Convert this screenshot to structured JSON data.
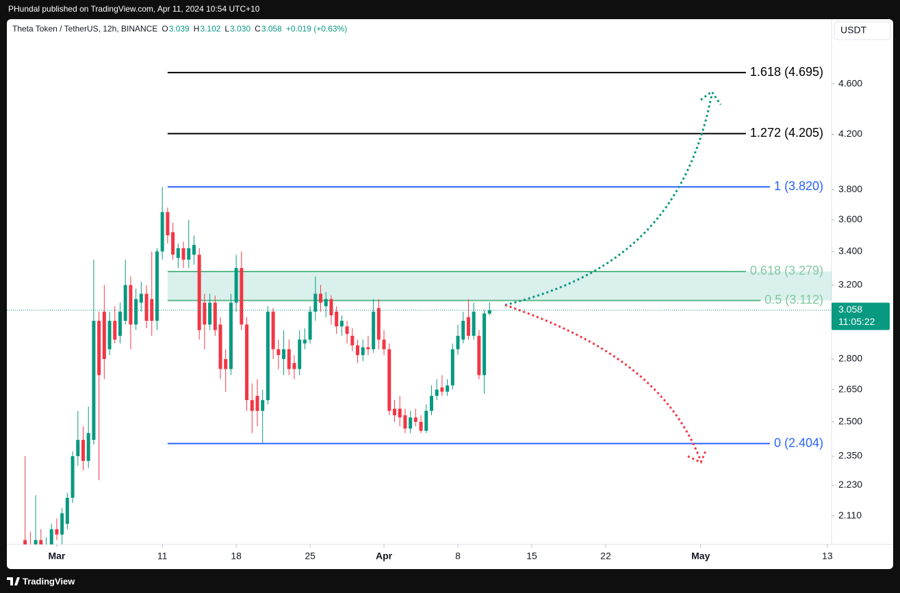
{
  "header": {
    "publisher": "PHundal published on TradingView.com, Apr 11, 2024 10:54 UTC+10"
  },
  "chart_data": {
    "type": "candlestick",
    "title": "Theta Token / TetherUS, 12h, BINANCE",
    "ohlc_legend": {
      "o_label": "O",
      "o": "3.039",
      "h_label": "H",
      "h": "3.102",
      "l_label": "L",
      "l": "3.030",
      "c_label": "C",
      "c": "3.058",
      "change": "+0.019 (+0.63%)"
    },
    "currency": "USDT",
    "x": [
      -3,
      -2.5,
      -2,
      -1.5,
      -1,
      -0.5,
      0,
      0.5,
      1,
      1.5,
      2,
      2.5,
      3,
      3.5,
      4,
      4.5,
      5,
      5.5,
      6,
      6.5,
      7,
      7.5,
      8,
      8.5,
      9,
      9.5,
      10,
      10.5,
      11,
      11.5,
      12,
      12.5,
      13,
      13.5,
      14,
      14.5,
      15,
      15.5,
      16,
      16.5,
      17,
      17.5,
      18,
      18.5,
      19,
      19.5,
      20,
      20.5,
      21,
      21.5,
      22,
      22.5,
      23,
      23.5,
      24,
      24.5,
      25,
      25.5,
      26,
      26.5,
      27,
      27.5,
      28,
      28.5,
      29,
      29.5,
      30,
      30.5,
      31,
      31.5,
      32,
      32.5,
      33,
      33.5,
      34,
      34.5,
      35,
      35.5,
      36,
      36.5,
      37,
      37.5,
      38,
      38.5,
      39,
      39.5,
      40,
      40.5,
      41
    ],
    "open": [
      2.02,
      1.99,
      1.97,
      2.02,
      1.98,
      2.0,
      2.06,
      2.04,
      2.08,
      2.18,
      2.35,
      2.42,
      2.33,
      2.42,
      3.0,
      3.05,
      2.85,
      3.0,
      2.92,
      3.0,
      3.2,
      2.98,
      3.1,
      3.15,
      3.12,
      3.0,
      3.4,
      3.65,
      3.52,
      3.36,
      3.42,
      3.35,
      3.38,
      3.38,
      3.1,
      2.98,
      3.1,
      2.98,
      2.8,
      2.75,
      3.1,
      3.3,
      2.98,
      2.6,
      2.62,
      2.55,
      2.6,
      3.05,
      2.85,
      2.8,
      2.85,
      2.78,
      2.75,
      2.88,
      2.9,
      3.05,
      3.15,
      3.08,
      3.12,
      3.05,
      2.97,
      2.97,
      2.92,
      2.87,
      2.82,
      2.86,
      2.85,
      3.07,
      2.9,
      2.85,
      2.56,
      2.56,
      2.53,
      2.47,
      2.52,
      2.5,
      2.46,
      2.55,
      2.62,
      2.66,
      2.64,
      2.67,
      2.85,
      2.9,
      3.02,
      2.92,
      2.92,
      2.72,
      3.039
    ],
    "high": [
      2.35,
      2.05,
      2.19,
      2.06,
      2.03,
      2.08,
      2.1,
      2.14,
      2.2,
      2.37,
      2.55,
      2.48,
      2.57,
      3.35,
      3.05,
      3.2,
      3.05,
      3.08,
      3.1,
      3.35,
      3.25,
      3.18,
      3.22,
      3.2,
      3.4,
      3.42,
      3.82,
      3.68,
      3.58,
      3.45,
      3.46,
      3.6,
      3.5,
      3.42,
      3.15,
      3.15,
      3.14,
      3.02,
      2.85,
      3.15,
      3.38,
      3.4,
      3.02,
      2.68,
      2.7,
      2.65,
      3.08,
      3.07,
      2.9,
      2.95,
      2.9,
      2.82,
      2.95,
      2.96,
      3.08,
      3.25,
      3.2,
      3.16,
      3.14,
      3.08,
      3.03,
      3.0,
      2.96,
      2.9,
      2.9,
      2.92,
      3.12,
      3.12,
      2.95,
      2.88,
      2.6,
      2.62,
      2.56,
      2.55,
      2.56,
      2.53,
      2.58,
      2.67,
      2.7,
      2.72,
      2.7,
      2.88,
      2.98,
      3.05,
      3.12,
      3.1,
      2.95,
      3.06,
      3.102
    ],
    "low": [
      1.96,
      1.95,
      1.95,
      1.96,
      1.95,
      1.97,
      2.02,
      2.0,
      2.06,
      2.16,
      2.31,
      2.29,
      2.3,
      2.4,
      2.25,
      2.7,
      2.82,
      2.88,
      2.88,
      2.98,
      2.85,
      2.95,
      3.05,
      2.96,
      2.92,
      2.95,
      3.35,
      3.45,
      3.35,
      3.3,
      3.3,
      3.3,
      3.32,
      2.9,
      2.85,
      2.95,
      2.92,
      2.7,
      2.64,
      2.72,
      3.05,
      2.95,
      2.55,
      2.45,
      2.48,
      2.404,
      2.58,
      2.8,
      2.75,
      2.72,
      2.72,
      2.7,
      2.72,
      2.85,
      2.88,
      3.0,
      3.05,
      3.02,
      2.98,
      2.93,
      2.92,
      2.88,
      2.84,
      2.78,
      2.79,
      2.82,
      2.83,
      2.85,
      2.82,
      2.53,
      2.5,
      2.48,
      2.45,
      2.45,
      2.48,
      2.45,
      2.45,
      2.53,
      2.6,
      2.62,
      2.62,
      2.65,
      2.82,
      2.88,
      2.9,
      2.9,
      2.7,
      2.63,
      3.03
    ],
    "close": [
      1.99,
      1.97,
      2.02,
      1.98,
      2.0,
      2.06,
      2.04,
      2.12,
      2.18,
      2.35,
      2.42,
      2.33,
      2.45,
      3.0,
      2.72,
      2.8,
      3.0,
      2.9,
      3.05,
      3.2,
      2.98,
      3.12,
      3.15,
      3.0,
      3.0,
      3.4,
      3.65,
      3.5,
      3.38,
      3.42,
      3.35,
      3.42,
      3.44,
      2.95,
      2.98,
      3.1,
      2.95,
      2.75,
      2.75,
      3.1,
      3.3,
      2.98,
      2.6,
      2.55,
      2.55,
      2.6,
      3.05,
      2.85,
      2.82,
      2.85,
      2.75,
      2.75,
      2.9,
      2.9,
      3.05,
      3.15,
      3.1,
      3.12,
      3.03,
      2.97,
      3.0,
      2.93,
      2.87,
      2.82,
      2.86,
      2.85,
      3.05,
      2.9,
      2.85,
      2.55,
      2.53,
      2.52,
      2.47,
      2.52,
      2.5,
      2.46,
      2.55,
      2.62,
      2.65,
      2.64,
      2.67,
      2.85,
      2.92,
      3.0,
      2.92,
      3.05,
      2.72,
      3.04,
      3.058
    ],
    "up_color": "#089981",
    "down_color": "#f23645",
    "xlim": [
      -4.73,
      73.4
    ],
    "xticks": [
      {
        "value": 0,
        "label": "Mar"
      },
      {
        "value": 10,
        "label": "11"
      },
      {
        "value": 17,
        "label": "18"
      },
      {
        "value": 24,
        "label": "25"
      },
      {
        "value": 31,
        "label": "Apr"
      },
      {
        "value": 38,
        "label": "8"
      },
      {
        "value": 45,
        "label": "15"
      },
      {
        "value": 52,
        "label": "22"
      },
      {
        "value": 61,
        "label": "May"
      },
      {
        "value": 73,
        "label": "13"
      }
    ],
    "ylim": [
      2.004,
      5.17
    ],
    "log_scale": true,
    "grid": false,
    "yticks": [
      {
        "value": 4.6,
        "label": "4.600"
      },
      {
        "value": 4.2,
        "label": "4.200"
      },
      {
        "value": 3.8,
        "label": "3.800"
      },
      {
        "value": 3.6,
        "label": "3.600"
      },
      {
        "value": 3.4,
        "label": "3.400"
      },
      {
        "value": 3.2,
        "label": "3.200"
      },
      {
        "value": 2.8,
        "label": "2.800"
      },
      {
        "value": 2.65,
        "label": "2.650"
      },
      {
        "value": 2.5,
        "label": "2.500"
      },
      {
        "value": 2.35,
        "label": "2.350"
      },
      {
        "value": 2.23,
        "label": "2.230"
      },
      {
        "value": 2.11,
        "label": "2.110"
      }
    ],
    "fib_start_x": 10.5,
    "fib_levels": [
      {
        "label": "1.618 (4.695)",
        "value": 4.695,
        "color": "#000000",
        "text_color": "#000000"
      },
      {
        "label": "1.272 (4.205)",
        "value": 4.205,
        "color": "#000000",
        "text_color": "#000000"
      },
      {
        "label": "1 (3.820)",
        "value": 3.82,
        "color": "#2962ff",
        "text_color": "#2962ff"
      },
      {
        "label": "0.618 (3.279)",
        "value": 3.279,
        "color": "#5cb889",
        "text_color": "#81c7a0",
        "band_color": "rgba(8,153,129,0.15)"
      },
      {
        "label": "0.5 (3.112)",
        "value": 3.112,
        "color": "#5cb889",
        "text_color": "#81c7a0"
      },
      {
        "label": "0 (2.404)",
        "value": 2.404,
        "color": "#2962ff",
        "text_color": "#2962ff"
      }
    ],
    "last_price": {
      "value": 3.058,
      "label": "3.058",
      "countdown": "11:05:22",
      "color": "#089981"
    }
  },
  "footer": {
    "brand": "TradingView"
  }
}
